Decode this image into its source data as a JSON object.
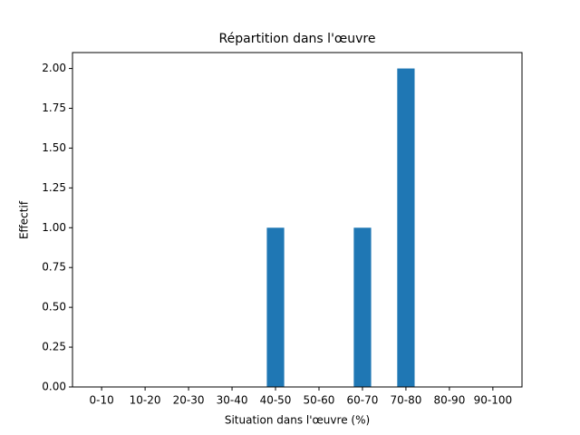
{
  "chart_data": {
    "type": "bar",
    "title": "Répartition dans l'œuvre",
    "xlabel": "Situation dans l'œuvre (%)",
    "ylabel": "Effectif",
    "categories": [
      "0-10",
      "10-20",
      "20-30",
      "30-40",
      "40-50",
      "50-60",
      "60-70",
      "70-80",
      "80-90",
      "90-100"
    ],
    "values": [
      0,
      0,
      0,
      0,
      1,
      0,
      1,
      2,
      0,
      0
    ],
    "color": "#1f77b4",
    "ylim": [
      0,
      2.1
    ],
    "yticks": [
      {
        "value": 0,
        "label": "0.00"
      },
      {
        "value": 0.25,
        "label": "0.25"
      },
      {
        "value": 0.5,
        "label": "0.50"
      },
      {
        "value": 0.75,
        "label": "0.75"
      },
      {
        "value": 1,
        "label": "1.00"
      },
      {
        "value": 1.25,
        "label": "1.25"
      },
      {
        "value": 1.5,
        "label": "1.50"
      },
      {
        "value": 1.75,
        "label": "1.75"
      },
      {
        "value": 2,
        "label": "2.00"
      }
    ],
    "grid": false
  }
}
